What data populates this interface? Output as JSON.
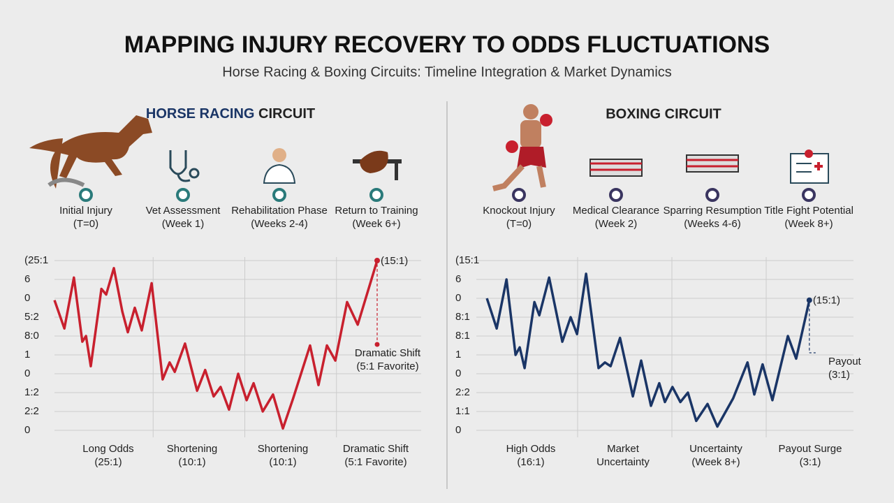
{
  "title": "MAPPING INJURY RECOVERY TO ODDS FLUCTUATIONS",
  "subtitle": "Horse Racing & Boxing Circuits: Timeline Integration & Market Dynamics",
  "panels": [
    {
      "heading": [
        "HORSE RACING",
        "CIRCUIT"
      ],
      "timeline": [
        [
          "Initial Injury",
          "(T=0)"
        ],
        [
          "Vet Assessment",
          "(Week 1)"
        ],
        [
          "Rehabilitation Phase",
          "(Weeks 2-4)"
        ],
        [
          "Return to Training",
          "(Week 6+)"
        ]
      ]
    },
    {
      "heading": [
        "BOXING CIRCUIT"
      ],
      "timeline": [
        [
          "Knockout Injury",
          "(T=0)"
        ],
        [
          "Medical Clearance",
          "(Week 2)"
        ],
        [
          "Sparring Resumption",
          "(Weeks 4-6)"
        ],
        [
          "Title Fight Potential",
          "(Week 8+)"
        ]
      ]
    }
  ],
  "chart_data": [
    {
      "type": "line",
      "xlim": [
        0,
        100
      ],
      "ylim": [
        0,
        9
      ],
      "yticks": [
        {
          "value": 9,
          "label": "(25:1"
        },
        {
          "value": 8,
          "label": "6"
        },
        {
          "value": 7,
          "label": "0"
        },
        {
          "value": 6,
          "label": "5:2"
        },
        {
          "value": 5,
          "label": "8:0"
        },
        {
          "value": 4,
          "label": "1"
        },
        {
          "value": 3,
          "label": "0"
        },
        {
          "value": 2,
          "label": "1:2"
        },
        {
          "value": 1,
          "label": "2:2"
        },
        0
      ],
      "grid": true,
      "series": [
        {
          "color": "#c8202e",
          "x": [
            0,
            2.7,
            5.3,
            7.6,
            8.6,
            9.9,
            12.8,
            14.1,
            16.2,
            18.5,
            20,
            21.9,
            23.8,
            26.5,
            29.5,
            31.4,
            32.8,
            35.6,
            38.9,
            41.1,
            43.4,
            45.3,
            47.6,
            50.1,
            52.4,
            54.3,
            56.8,
            59.6,
            62.3,
            65.1,
            69.7,
            72,
            74.3,
            76.6,
            79.8,
            82.7,
            88
          ],
          "values": [
            6.9,
            5.4,
            8.1,
            4.7,
            5.0,
            3.4,
            7.5,
            7.2,
            8.6,
            6.3,
            5.2,
            6.5,
            5.3,
            7.8,
            2.7,
            3.6,
            3.1,
            4.6,
            2.1,
            3.2,
            1.8,
            2.3,
            1.1,
            3.0,
            1.6,
            2.5,
            1.0,
            1.9,
            0.1,
            1.7,
            4.5,
            2.4,
            4.5,
            3.7,
            6.8,
            5.6,
            9.0
          ]
        }
      ],
      "x_labels": [
        [
          "Long Odds",
          "(25:1)"
        ],
        [
          "Shortening",
          "(10:1)"
        ],
        [
          "Shortening",
          "(10:1)"
        ],
        [
          "Dramatic Shift",
          "(5:1 Favorite)"
        ]
      ],
      "annotations": [
        "(15:1)",
        [
          "Dramatic Shift",
          "(5:1 Favorite)"
        ]
      ]
    },
    {
      "type": "line",
      "xlim": [
        0,
        100
      ],
      "ylim": [
        0,
        9
      ],
      "yticks": [
        {
          "value": 9,
          "label": "(15:1"
        },
        {
          "value": 8,
          "label": "6"
        },
        {
          "value": 7,
          "label": "0"
        },
        {
          "value": 6,
          "label": "8:1"
        },
        {
          "value": 5,
          "label": "8:1"
        },
        {
          "value": 4,
          "label": "1"
        },
        {
          "value": 3,
          "label": "0"
        },
        {
          "value": 2,
          "label": "2:2"
        },
        {
          "value": 1,
          "label": "1:1"
        },
        0
      ],
      "grid": true,
      "series": [
        {
          "color": "#1a3566",
          "x": [
            2.8,
            5.4,
            8,
            10.4,
            11.5,
            12.8,
            15.4,
            16.7,
            19.3,
            22.8,
            25,
            26.7,
            29.1,
            32.4,
            34.1,
            35.6,
            38.1,
            41.5,
            43.7,
            46.3,
            48.5,
            50,
            52,
            54.1,
            56.1,
            58.3,
            61.3,
            63.9,
            68.1,
            71.9,
            73.7,
            75.9,
            78.5,
            82.6,
            84.8,
            88.3
          ],
          "values": [
            7.0,
            5.4,
            8.0,
            4.0,
            4.4,
            3.3,
            6.8,
            6.1,
            8.1,
            4.7,
            6.0,
            5.1,
            8.3,
            3.3,
            3.6,
            3.4,
            4.9,
            1.8,
            3.7,
            1.3,
            2.5,
            1.5,
            2.3,
            1.5,
            2.0,
            0.5,
            1.4,
            0.2,
            1.7,
            3.6,
            1.9,
            3.5,
            1.6,
            5.0,
            3.8,
            6.9
          ]
        }
      ],
      "x_labels": [
        [
          "High Odds",
          "(16:1)"
        ],
        [
          "Market",
          "Uncertainty"
        ],
        [
          "Uncertainty",
          "(Week 8+)"
        ],
        [
          "Payout Surge",
          "(3:1)"
        ]
      ],
      "annotations": [
        "(15:1)",
        [
          "Payout",
          "(3:1)"
        ]
      ]
    }
  ]
}
